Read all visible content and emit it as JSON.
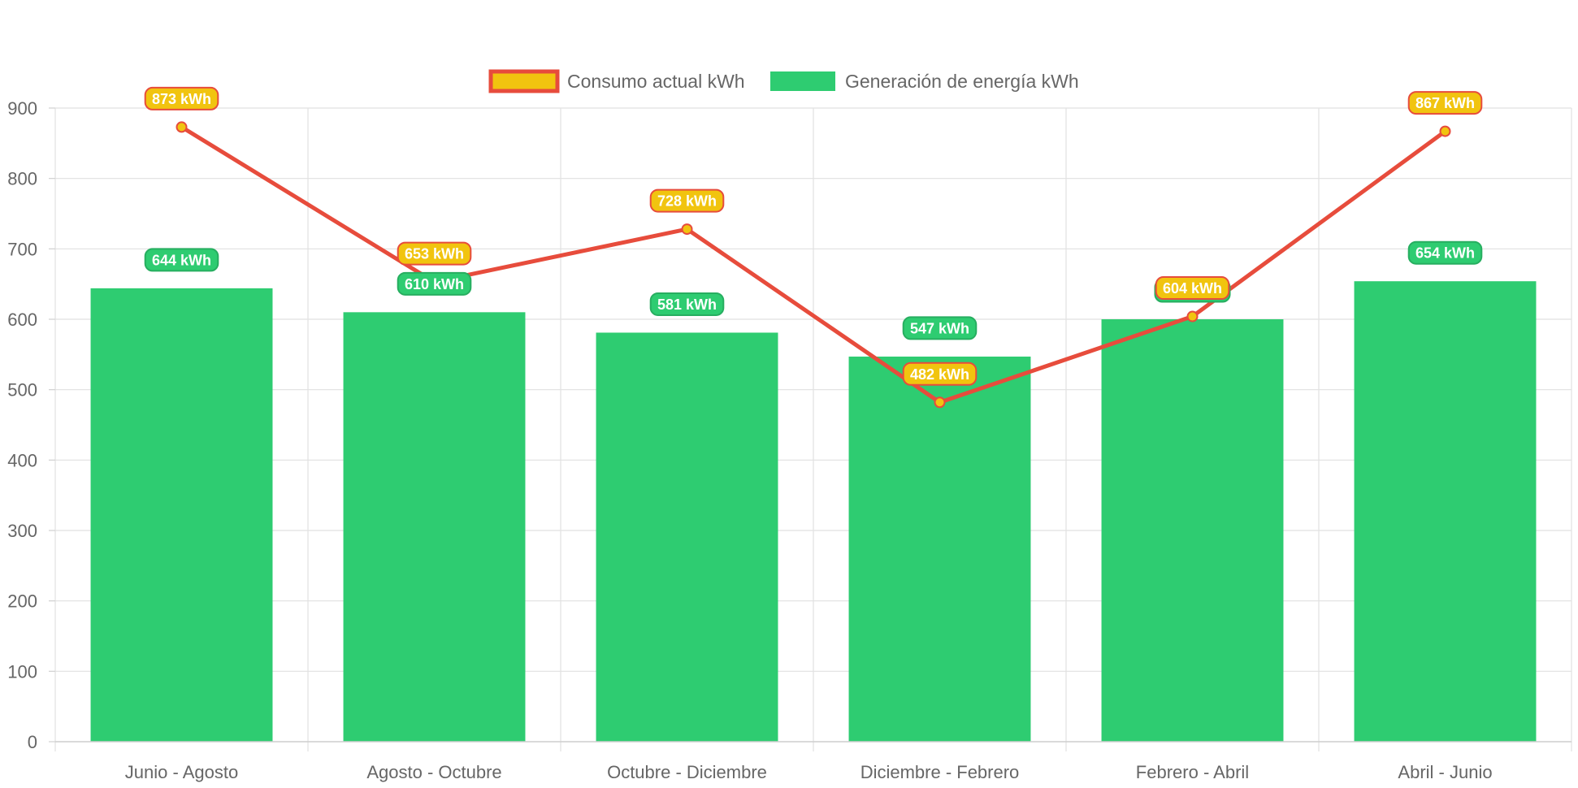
{
  "chart_data": {
    "type": "bar",
    "categories": [
      "Junio - Agosto",
      "Agosto - Octubre",
      "Octubre - Diciembre",
      "Diciembre - Febrero",
      "Febrero - Abril",
      "Abril - Junio"
    ],
    "series": [
      {
        "name": "Consumo actual kWh",
        "type": "line",
        "values": [
          873,
          653,
          728,
          482,
          604,
          867
        ],
        "labels": [
          "873 kWh",
          "653 kWh",
          "728 kWh",
          "482 kWh",
          "604 kWh",
          "867 kWh"
        ],
        "line_color": "#e74c3c",
        "fill_color": "#f1c40f"
      },
      {
        "name": "Generación de energía kWh",
        "type": "bar",
        "values": [
          644,
          610,
          581,
          547,
          600,
          654
        ],
        "labels": [
          "644 kWh",
          "610 kWh",
          "581 kWh",
          "547 kWh",
          "",
          "654 kWh"
        ],
        "color": "#2ecc71",
        "label_border": "#27ae60"
      }
    ],
    "yticks": [
      0,
      100,
      200,
      300,
      400,
      500,
      600,
      700,
      800,
      900
    ],
    "ylim": [
      0,
      900
    ],
    "grid": true,
    "legend_position": "top"
  }
}
